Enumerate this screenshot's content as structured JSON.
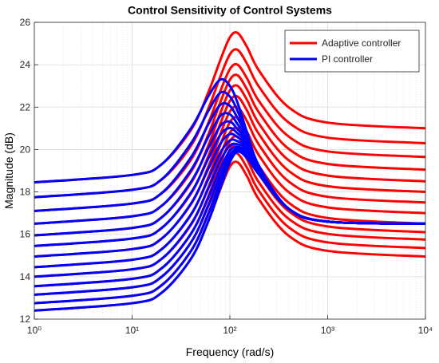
{
  "chart_data": {
    "type": "line",
    "title": "Control Sensitivity of Control Systems",
    "x_label": "Frequency  (rad/s)",
    "y_label": "Magnitude (dB)",
    "x_scale": "log",
    "x": [
      1,
      10,
      20,
      40,
      60,
      80,
      100,
      120,
      150,
      200,
      400,
      1000,
      10000
    ],
    "xlim": [
      1,
      10000
    ],
    "xticks": [
      {
        "value": 1,
        "label": "10⁰"
      },
      {
        "value": 10,
        "label": "10¹"
      },
      {
        "value": 100,
        "label": "10²"
      },
      {
        "value": 1000,
        "label": "10³"
      },
      {
        "value": 10000,
        "label": "10⁴"
      }
    ],
    "ylim": [
      12,
      26
    ],
    "yticks": [
      12,
      14,
      16,
      18,
      20,
      22,
      24,
      26
    ],
    "grid": true,
    "minor_grid": true,
    "legend": "upper right",
    "series": [
      {
        "name": "Adaptive controller",
        "color": "#ff0000",
        "values": [
          [
            12.4,
            12.75,
            13.24,
            14.85,
            16.6,
            18.14,
            19.19,
            19.4,
            18.73,
            17.62,
            15.93,
            15.22,
            14.95
          ],
          [
            12.75,
            13.1,
            13.6,
            15.22,
            16.98,
            18.53,
            19.59,
            19.8,
            19.13,
            18.02,
            16.33,
            15.62,
            15.35
          ],
          [
            13.15,
            13.5,
            14.0,
            15.62,
            17.38,
            18.93,
            19.99,
            20.2,
            19.53,
            18.42,
            16.73,
            16.02,
            15.75
          ],
          [
            13.55,
            13.9,
            14.4,
            16.02,
            17.78,
            19.33,
            20.39,
            20.6,
            19.93,
            18.8,
            17.09,
            16.37,
            16.1
          ],
          [
            14.0,
            14.35,
            14.84,
            16.45,
            18.2,
            19.74,
            20.79,
            21.0,
            20.33,
            19.2,
            17.49,
            16.77,
            16.5
          ],
          [
            14.45,
            14.8,
            15.3,
            16.92,
            18.68,
            20.23,
            21.29,
            21.5,
            20.83,
            19.7,
            17.99,
            17.27,
            17.0
          ],
          [
            14.95,
            15.3,
            15.8,
            17.42,
            19.18,
            20.73,
            21.79,
            22.0,
            21.33,
            20.2,
            18.49,
            17.77,
            17.5
          ],
          [
            15.45,
            15.8,
            16.3,
            17.92,
            19.68,
            21.23,
            22.29,
            22.5,
            21.83,
            20.7,
            18.99,
            18.27,
            18.0
          ],
          [
            15.95,
            16.3,
            16.8,
            18.42,
            20.18,
            21.73,
            22.79,
            23.0,
            22.33,
            21.2,
            19.49,
            18.77,
            18.5
          ],
          [
            16.5,
            16.85,
            17.34,
            18.95,
            20.7,
            22.24,
            23.29,
            23.5,
            22.83,
            21.72,
            20.03,
            19.32,
            19.05
          ],
          [
            17.1,
            17.45,
            17.93,
            19.52,
            21.24,
            22.76,
            23.79,
            24.0,
            23.35,
            22.26,
            20.61,
            19.91,
            19.65
          ],
          [
            17.75,
            18.1,
            18.58,
            20.18,
            21.92,
            23.45,
            24.49,
            24.7,
            24.04,
            22.94,
            21.27,
            20.56,
            20.3
          ],
          [
            18.45,
            18.8,
            19.3,
            20.92,
            22.68,
            24.23,
            25.29,
            25.5,
            24.83,
            23.7,
            21.99,
            21.27,
            21.0
          ]
        ]
      },
      {
        "name": "PI controller",
        "color": "#0000ff",
        "values": [
          [
            12.4,
            12.75,
            13.24,
            14.85,
            16.6,
            18.2,
            19.4,
            19.9,
            19.6,
            18.8,
            17.2,
            16.6,
            16.5
          ],
          [
            12.75,
            13.1,
            13.59,
            15.21,
            16.94,
            18.47,
            19.55,
            19.94,
            19.7,
            18.83,
            17.2,
            16.6,
            16.5
          ],
          [
            13.15,
            13.5,
            13.99,
            15.62,
            17.33,
            18.79,
            19.74,
            20.02,
            19.8,
            18.87,
            17.2,
            16.6,
            16.5
          ],
          [
            13.55,
            13.9,
            14.39,
            16.03,
            17.71,
            19.11,
            19.94,
            20.11,
            19.9,
            18.9,
            17.2,
            16.6,
            16.5
          ],
          [
            14.0,
            14.35,
            14.84,
            16.48,
            18.15,
            19.48,
            20.18,
            20.25,
            20.0,
            18.93,
            17.2,
            16.6,
            16.5
          ],
          [
            14.45,
            14.8,
            15.29,
            16.94,
            18.59,
            19.85,
            20.43,
            20.39,
            20.1,
            18.97,
            17.2,
            16.6,
            16.5
          ],
          [
            14.95,
            15.3,
            15.79,
            17.45,
            19.08,
            20.28,
            20.73,
            20.58,
            20.2,
            19.0,
            17.2,
            16.6,
            16.5
          ],
          [
            15.45,
            15.8,
            16.29,
            17.96,
            19.56,
            20.7,
            21.02,
            20.76,
            20.3,
            19.03,
            17.2,
            16.6,
            16.5
          ],
          [
            15.95,
            16.3,
            16.79,
            18.47,
            20.05,
            21.12,
            21.32,
            20.95,
            20.4,
            19.07,
            17.2,
            16.6,
            16.5
          ],
          [
            16.5,
            16.85,
            17.34,
            19.03,
            20.59,
            21.59,
            21.66,
            21.19,
            20.5,
            19.1,
            17.2,
            16.6,
            16.5
          ],
          [
            17.1,
            17.45,
            17.94,
            19.63,
            21.18,
            22.11,
            22.06,
            21.48,
            20.6,
            19.13,
            17.2,
            16.6,
            16.5
          ],
          [
            17.75,
            18.1,
            18.59,
            20.29,
            21.81,
            22.68,
            22.5,
            21.81,
            20.7,
            19.17,
            17.2,
            16.6,
            16.5
          ],
          [
            18.45,
            18.8,
            19.3,
            21.0,
            22.5,
            23.3,
            23.0,
            22.2,
            20.8,
            19.2,
            17.2,
            16.6,
            16.5
          ]
        ]
      }
    ]
  }
}
